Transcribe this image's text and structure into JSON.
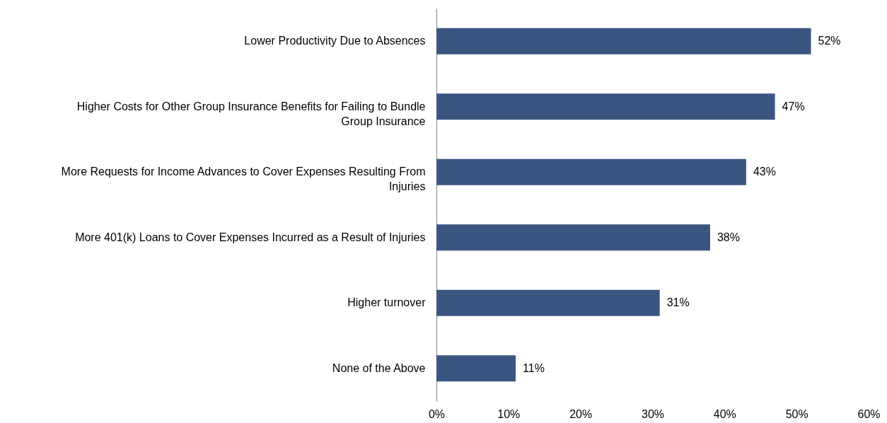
{
  "chart_data": {
    "type": "bar",
    "orientation": "horizontal",
    "categories": [
      "Lower Productivity Due to Absences",
      "Higher Costs for Other Group Insurance Benefits for Failing to Bundle Group Insurance",
      "More Requests for Income Advances to Cover Expenses Resulting From Injuries",
      "More 401(k) Loans to Cover Expenses Incurred as a Result of Injuries",
      "Higher turnover",
      "None of the Above"
    ],
    "values": [
      52,
      47,
      43,
      38,
      31,
      11
    ],
    "value_labels": [
      "52%",
      "47%",
      "43%",
      "38%",
      "31%",
      "11%"
    ],
    "color": "#3a5580",
    "xlim": [
      0,
      60
    ],
    "xticks": [
      {
        "value": 0,
        "label": "0%"
      },
      {
        "value": 10,
        "label": "10%"
      },
      {
        "value": 20,
        "label": "20%"
      },
      {
        "value": 30,
        "label": "30%"
      },
      {
        "value": 40,
        "label": "40%"
      },
      {
        "value": 50,
        "label": "50%"
      },
      {
        "value": 60,
        "label": "60%"
      }
    ],
    "grid": false
  }
}
